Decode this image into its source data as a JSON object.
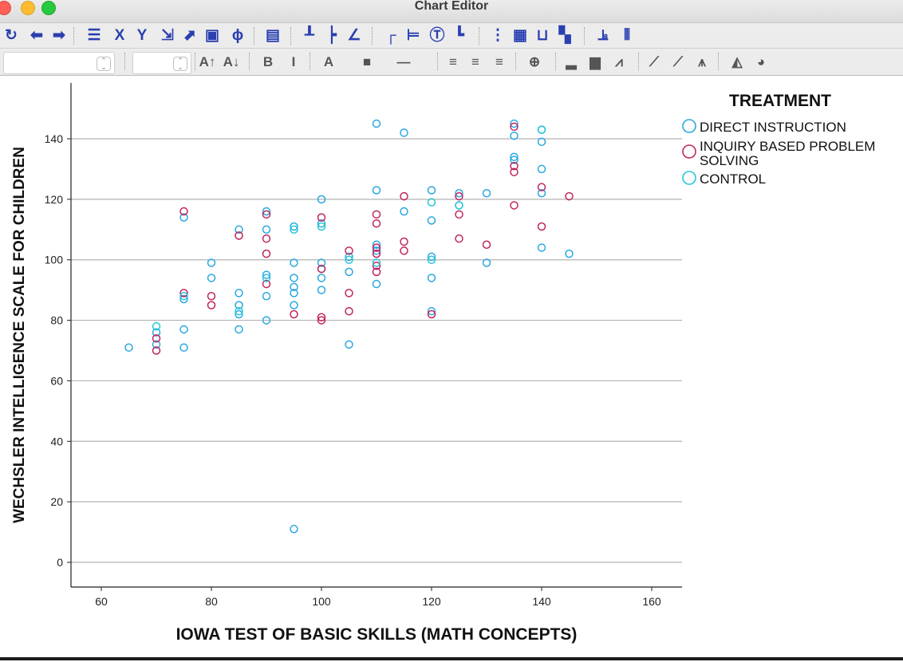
{
  "window": {
    "title": "Chart Editor"
  },
  "toolbar1": [
    {
      "name": "undo-icon",
      "glyph": "↻"
    },
    {
      "name": "back-icon",
      "glyph": "⬅"
    },
    {
      "name": "forward-icon",
      "glyph": "➡"
    },
    {
      "name": "properties-icon",
      "glyph": "☰"
    },
    {
      "name": "x-axis-icon",
      "glyph": "X"
    },
    {
      "name": "y-axis-icon",
      "glyph": "Y"
    },
    {
      "name": "rescale-icon",
      "glyph": "⇲"
    },
    {
      "name": "expand-icon",
      "glyph": "⬈"
    },
    {
      "name": "frame-icon",
      "glyph": "▣"
    },
    {
      "name": "lasso-icon",
      "glyph": "ϕ"
    },
    {
      "name": "textbox-icon",
      "glyph": "▤"
    },
    {
      "name": "reference-line-y-icon",
      "glyph": "┸"
    },
    {
      "name": "reference-line-x-icon",
      "glyph": "┝"
    },
    {
      "name": "equation-line-icon",
      "glyph": "∠"
    },
    {
      "name": "title-icon",
      "glyph": "┌"
    },
    {
      "name": "subtitle-icon",
      "glyph": "⊨"
    },
    {
      "name": "annotation-icon",
      "glyph": "Ⓣ"
    },
    {
      "name": "footnote-icon",
      "glyph": "┗"
    },
    {
      "name": "grid-icon",
      "glyph": "⋮"
    },
    {
      "name": "table-icon",
      "glyph": "▦"
    },
    {
      "name": "axis-icon",
      "glyph": "⊔"
    },
    {
      "name": "legend-icon",
      "glyph": "▚"
    },
    {
      "name": "label-icon",
      "glyph": "⫡"
    },
    {
      "name": "bars-icon",
      "glyph": "⦀"
    }
  ],
  "toolbar2": [
    {
      "name": "font-grow-icon",
      "glyph": "A↑"
    },
    {
      "name": "font-shrink-icon",
      "glyph": "A↓"
    },
    {
      "name": "bold-icon",
      "glyph": "B"
    },
    {
      "name": "italic-icon",
      "glyph": "I"
    },
    {
      "name": "text-color-icon",
      "glyph": "A"
    },
    {
      "name": "fill-color-icon",
      "glyph": "■"
    },
    {
      "name": "line-style-icon",
      "glyph": "—"
    },
    {
      "name": "align-left-icon",
      "glyph": "≡"
    },
    {
      "name": "align-center-icon",
      "glyph": "≡"
    },
    {
      "name": "align-right-icon",
      "glyph": "≡"
    },
    {
      "name": "crosshair-icon",
      "glyph": "⊕"
    },
    {
      "name": "bar-chart-icon",
      "glyph": "▂"
    },
    {
      "name": "cluster-bar-icon",
      "glyph": "▆"
    },
    {
      "name": "line-chart-icon",
      "glyph": "⩘"
    },
    {
      "name": "fit-line-icon",
      "glyph": "⟋"
    },
    {
      "name": "fit-subgroup-icon",
      "glyph": "⟋"
    },
    {
      "name": "interpolation-icon",
      "glyph": "⩚"
    },
    {
      "name": "area-chart-icon",
      "glyph": "◭"
    },
    {
      "name": "pie-chart-icon",
      "glyph": "◕"
    }
  ],
  "chart_data": {
    "type": "scatter",
    "title": "",
    "xlabel": "IOWA TEST OF BASIC SKILLS (MATH CONCEPTS)",
    "ylabel": "WECHSLER INTELLIGENCE SCALE FOR CHILDREN",
    "xlim": [
      55,
      166
    ],
    "ylim": [
      -8,
      158
    ],
    "xticks": [
      60,
      80,
      100,
      120,
      140,
      160
    ],
    "yticks": [
      0,
      20,
      40,
      60,
      80,
      100,
      120,
      140
    ],
    "grid": "horizontal",
    "legend": {
      "title": "TREATMENT",
      "position": "right"
    },
    "series": [
      {
        "name": "DIRECT INSTRUCTION",
        "color": "#29a8e0",
        "points": [
          [
            65,
            71
          ],
          [
            70,
            76
          ],
          [
            70,
            72
          ],
          [
            75,
            114
          ],
          [
            75,
            87
          ],
          [
            75,
            77
          ],
          [
            75,
            71
          ],
          [
            80,
            99
          ],
          [
            80,
            94
          ],
          [
            85,
            110
          ],
          [
            85,
            89
          ],
          [
            85,
            85
          ],
          [
            85,
            82
          ],
          [
            85,
            77
          ],
          [
            90,
            116
          ],
          [
            90,
            110
          ],
          [
            90,
            95
          ],
          [
            90,
            88
          ],
          [
            90,
            80
          ],
          [
            95,
            111
          ],
          [
            95,
            99
          ],
          [
            95,
            94
          ],
          [
            95,
            91
          ],
          [
            95,
            89
          ],
          [
            95,
            85
          ],
          [
            95,
            11
          ],
          [
            100,
            120
          ],
          [
            100,
            112
          ],
          [
            100,
            99
          ],
          [
            100,
            97
          ],
          [
            100,
            94
          ],
          [
            100,
            90
          ],
          [
            105,
            101
          ],
          [
            105,
            96
          ],
          [
            105,
            72
          ],
          [
            110,
            145
          ],
          [
            110,
            123
          ],
          [
            110,
            105
          ],
          [
            110,
            103
          ],
          [
            110,
            92
          ],
          [
            115,
            142
          ],
          [
            115,
            116
          ],
          [
            120,
            123
          ],
          [
            120,
            113
          ],
          [
            120,
            101
          ],
          [
            120,
            94
          ],
          [
            120,
            83
          ],
          [
            125,
            122
          ],
          [
            125,
            118
          ],
          [
            130,
            122
          ],
          [
            130,
            99
          ],
          [
            135,
            145
          ],
          [
            135,
            141
          ],
          [
            135,
            134
          ],
          [
            135,
            133
          ],
          [
            140,
            143
          ],
          [
            140,
            139
          ],
          [
            140,
            130
          ],
          [
            140,
            122
          ],
          [
            140,
            104
          ],
          [
            145,
            102
          ]
        ]
      },
      {
        "name": "INQUIRY BASED PROBLEM SOLVING",
        "color": "#c0245f",
        "points": [
          [
            70,
            74
          ],
          [
            70,
            70
          ],
          [
            75,
            116
          ],
          [
            75,
            89
          ],
          [
            80,
            88
          ],
          [
            80,
            85
          ],
          [
            85,
            108
          ],
          [
            90,
            115
          ],
          [
            90,
            107
          ],
          [
            90,
            102
          ],
          [
            90,
            92
          ],
          [
            95,
            82
          ],
          [
            100,
            114
          ],
          [
            100,
            97
          ],
          [
            100,
            81
          ],
          [
            100,
            80
          ],
          [
            105,
            103
          ],
          [
            105,
            89
          ],
          [
            105,
            83
          ],
          [
            110,
            115
          ],
          [
            110,
            112
          ],
          [
            110,
            104
          ],
          [
            110,
            102
          ],
          [
            110,
            98
          ],
          [
            110,
            96
          ],
          [
            115,
            121
          ],
          [
            115,
            106
          ],
          [
            115,
            103
          ],
          [
            120,
            82
          ],
          [
            125,
            121
          ],
          [
            125,
            115
          ],
          [
            125,
            107
          ],
          [
            130,
            105
          ],
          [
            135,
            144
          ],
          [
            135,
            131
          ],
          [
            135,
            129
          ],
          [
            135,
            118
          ],
          [
            140,
            124
          ],
          [
            140,
            111
          ],
          [
            145,
            121
          ]
        ]
      },
      {
        "name": "CONTROL",
        "color": "#27c6d8",
        "points": [
          [
            70,
            78
          ],
          [
            75,
            88
          ],
          [
            85,
            83
          ],
          [
            90,
            94
          ],
          [
            95,
            110
          ],
          [
            100,
            111
          ],
          [
            105,
            100
          ],
          [
            110,
            99
          ],
          [
            120,
            119
          ],
          [
            120,
            100
          ],
          [
            125,
            118
          ],
          [
            140,
            143
          ]
        ]
      }
    ]
  }
}
